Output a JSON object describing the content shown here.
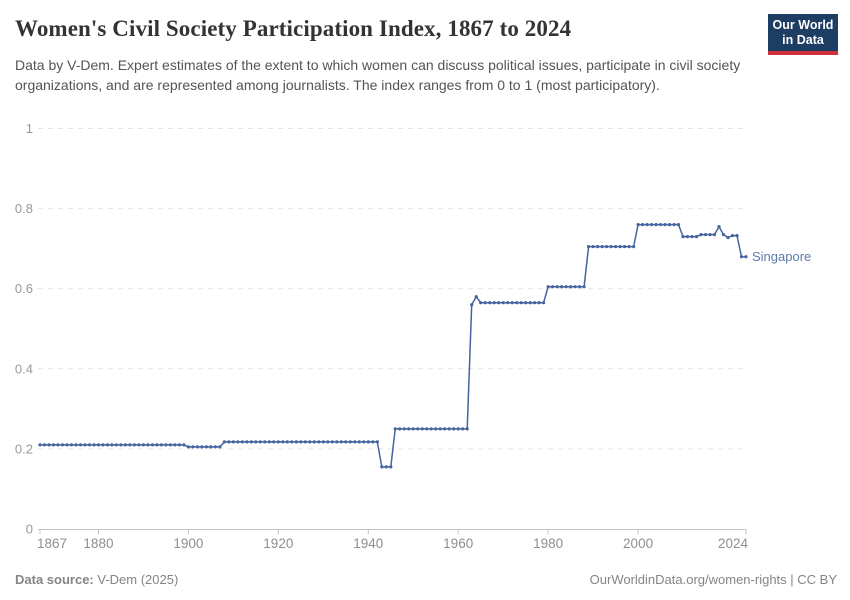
{
  "logo": {
    "line1": "Our World",
    "line2": "in Data"
  },
  "header": {
    "title": "Women's Civil Society Participation Index, 1867 to 2024",
    "subtitle": "Data by V-Dem. Expert estimates of the extent to which women can discuss political issues, participate in civil society organizations, and are represented among journalists. The index ranges from 0 to 1 (most participatory)."
  },
  "footer": {
    "source_label": "Data source:",
    "source_value": " V-Dem (2025)",
    "credit": "OurWorldinData.org/women-rights | CC BY"
  },
  "colors": {
    "line": "#44639f",
    "entity_label": "#5b7ba8",
    "grid": "#e3e3e3",
    "axis": "#c4c4c4",
    "y_tick_label": "#999999",
    "x_tick_label": "#8f8f8f",
    "logo_bg": "#1d3d63",
    "logo_red": "#d13239"
  },
  "chart_data": {
    "type": "line",
    "title": "Women's Civil Society Participation Index, 1867 to 2024",
    "xlabel": "",
    "ylabel": "",
    "xlim": [
      1867,
      2024
    ],
    "ylim": [
      0,
      1
    ],
    "xticks": [
      1867,
      1880,
      1900,
      1920,
      1940,
      1960,
      1980,
      2000,
      2024
    ],
    "yticks": [
      0,
      0.2,
      0.4,
      0.6,
      0.8,
      1
    ],
    "grid": true,
    "legend_position": "end-of-line-label",
    "series": [
      {
        "name": "Singapore",
        "step_segments": [
          {
            "from": 1867,
            "to": 1899,
            "value": 0.21
          },
          {
            "from": 1900,
            "to": 1907,
            "value": 0.205
          },
          {
            "from": 1908,
            "to": 1942,
            "value": 0.2175
          },
          {
            "from": 1943,
            "to": 1945,
            "value": 0.155
          },
          {
            "from": 1946,
            "to": 1962,
            "value": 0.25
          },
          {
            "from": 1963,
            "to": 1963,
            "value": 0.56
          },
          {
            "from": 1964,
            "to": 1964,
            "value": 0.58
          },
          {
            "from": 1965,
            "to": 1979,
            "value": 0.565
          },
          {
            "from": 1980,
            "to": 1988,
            "value": 0.605
          },
          {
            "from": 1989,
            "to": 1999,
            "value": 0.705
          },
          {
            "from": 2000,
            "to": 2009,
            "value": 0.76
          },
          {
            "from": 2010,
            "to": 2013,
            "value": 0.73
          },
          {
            "from": 2014,
            "to": 2017,
            "value": 0.735
          },
          {
            "from": 2018,
            "to": 2018,
            "value": 0.755
          },
          {
            "from": 2019,
            "to": 2019,
            "value": 0.735
          },
          {
            "from": 2020,
            "to": 2020,
            "value": 0.7275
          },
          {
            "from": 2021,
            "to": 2022,
            "value": 0.7325
          },
          {
            "from": 2023,
            "to": 2024,
            "value": 0.68
          }
        ]
      }
    ]
  }
}
